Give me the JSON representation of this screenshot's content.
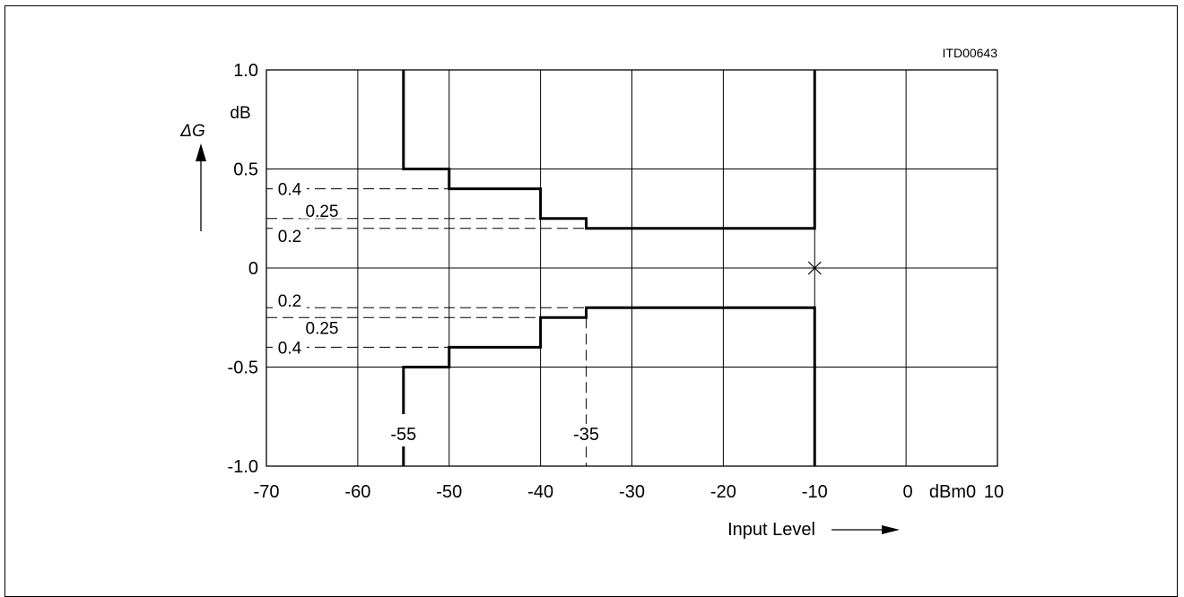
{
  "chart_data": {
    "type": "line",
    "id_label": "ITD00643",
    "xlabel": "Input Level",
    "x_unit": "dBm0",
    "ylabel": "ΔG",
    "y_unit": "dB",
    "xlim": [
      -70,
      10
    ],
    "ylim": [
      -1.0,
      1.0
    ],
    "grid": true,
    "x_ticks": [
      {
        "value": -70,
        "label": "-70"
      },
      {
        "value": -60,
        "label": "-60"
      },
      {
        "value": -50,
        "label": "-50"
      },
      {
        "value": -40,
        "label": "-40"
      },
      {
        "value": -30,
        "label": "-30"
      },
      {
        "value": -20,
        "label": "-20"
      },
      {
        "value": -10,
        "label": "-10"
      },
      {
        "value": 0,
        "label": "0"
      },
      {
        "value": 10,
        "label": "10"
      }
    ],
    "y_ticks": [
      {
        "value": 1.0,
        "label": "1.0"
      },
      {
        "value": 0.5,
        "label": "0.5"
      },
      {
        "value": 0,
        "label": "0"
      },
      {
        "value": -0.5,
        "label": "-0.5"
      },
      {
        "value": -1.0,
        "label": "-1.0"
      }
    ],
    "series": [
      {
        "points": [
          [
            -55,
            1.0
          ],
          [
            -55,
            0.5
          ],
          [
            -50,
            0.5
          ],
          [
            -50,
            0.4
          ],
          [
            -40,
            0.4
          ],
          [
            -40,
            0.25
          ],
          [
            -35,
            0.25
          ],
          [
            -35,
            0.2
          ],
          [
            -10,
            0.2
          ],
          [
            -10,
            1.0
          ]
        ]
      },
      {
        "points": [
          [
            -55,
            -1.0
          ],
          [
            -55,
            -0.5
          ],
          [
            -50,
            -0.5
          ],
          [
            -50,
            -0.4
          ],
          [
            -40,
            -0.4
          ],
          [
            -40,
            -0.25
          ],
          [
            -35,
            -0.25
          ],
          [
            -35,
            -0.2
          ],
          [
            -10,
            -0.2
          ],
          [
            -10,
            -1.0
          ]
        ]
      }
    ],
    "h_refs": [
      {
        "value": 0.4,
        "label": "0.4",
        "x_to": -50
      },
      {
        "value": 0.25,
        "label": "0.25",
        "x_to": -40
      },
      {
        "value": 0.2,
        "label": "0.2",
        "x_to": -35
      },
      {
        "value": -0.2,
        "label": "0.2",
        "x_to": -35
      },
      {
        "value": -0.25,
        "label": "0.25",
        "x_to": -40
      },
      {
        "value": -0.4,
        "label": "0.4",
        "x_to": -50
      }
    ],
    "v_refs": [
      {
        "value": -35,
        "label": "-35",
        "y_from": -0.25
      },
      {
        "value": -55,
        "label": "-55",
        "y_from": -1.0
      }
    ],
    "marker": {
      "x": -10,
      "y": 0,
      "shape": "x"
    }
  }
}
